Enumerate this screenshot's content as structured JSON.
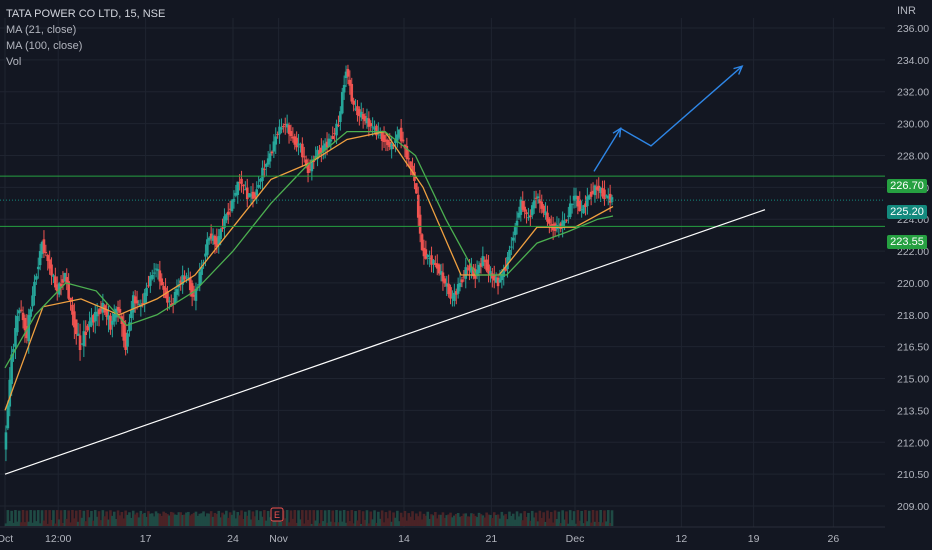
{
  "legend": {
    "symbol": "TATA POWER CO LTD, 15, NSE",
    "ma21": "MA (21, close)",
    "ma100": "MA (100, close)",
    "vol": "Vol"
  },
  "currency": "INR",
  "price_tags": {
    "upper_level": "226.70",
    "last_price": "225.20",
    "lower_level": "223.55"
  },
  "earnings_marker": "E",
  "colors": {
    "background": "#131722",
    "up": "#26a69a",
    "down": "#ef5350",
    "ma21": "#f0a040",
    "ma100": "#4caf50",
    "level": "#26a041",
    "trendline": "#ffffff",
    "projection": "#2e86e6"
  },
  "chart_data": {
    "type": "line",
    "title": "TATA POWER CO LTD, 15, NSE",
    "y_tick_labels": [
      "209.00",
      "210.50",
      "212.00",
      "213.50",
      "215.00",
      "216.50",
      "218.00",
      "220.00",
      "222.00",
      "224.00",
      "226.00",
      "228.00",
      "230.00",
      "232.00",
      "234.00",
      "236.00"
    ],
    "ylim": [
      208.5,
      236.5
    ],
    "x_tick_labels": [
      "Oct",
      "12:00",
      "17",
      "24",
      "Nov",
      "14",
      "21",
      "Dec",
      "12",
      "19",
      "26"
    ],
    "x_tick_values": [
      0,
      14,
      37,
      60,
      72,
      105,
      128,
      150,
      178,
      197,
      218
    ],
    "xlim": [
      0,
      225
    ],
    "series": [
      {
        "name": "close",
        "x": [
          0,
          2,
          4,
          6,
          8,
          10,
          12,
          14,
          16,
          18,
          20,
          22,
          24,
          26,
          28,
          30,
          32,
          34,
          36,
          38,
          40,
          42,
          44,
          46,
          48,
          50,
          52,
          54,
          56,
          58,
          60,
          62,
          64,
          66,
          68,
          70,
          72,
          74,
          76,
          78,
          80,
          82,
          84,
          86,
          88,
          90,
          92,
          94,
          96,
          98,
          100,
          102,
          104,
          106,
          108,
          110,
          112,
          114,
          116,
          118,
          120,
          122,
          124,
          126,
          128,
          130,
          132,
          134,
          136,
          138,
          140,
          142,
          144,
          146,
          148,
          150,
          152,
          154,
          156,
          158,
          160
        ],
        "y": [
          211.5,
          216.0,
          218.5,
          217.0,
          220.0,
          222.5,
          221.0,
          219.5,
          220.5,
          218.0,
          216.5,
          217.5,
          218.0,
          218.5,
          217.5,
          218.5,
          216.5,
          219.0,
          218.5,
          220.0,
          221.0,
          219.5,
          218.5,
          220.0,
          220.5,
          219.0,
          221.0,
          223.0,
          222.5,
          224.0,
          225.0,
          226.5,
          225.5,
          225.5,
          227.0,
          228.0,
          229.5,
          230.0,
          229.0,
          228.5,
          227.0,
          228.0,
          228.5,
          229.0,
          230.0,
          233.5,
          231.0,
          230.5,
          230.0,
          229.5,
          229.0,
          228.5,
          229.5,
          228.0,
          226.5,
          222.0,
          221.5,
          221.0,
          220.0,
          219.0,
          220.0,
          221.0,
          220.5,
          221.5,
          220.5,
          220.0,
          221.0,
          223.0,
          225.0,
          224.0,
          225.5,
          224.5,
          223.5,
          223.5,
          224.0,
          225.5,
          224.5,
          225.5,
          226.0,
          225.5,
          225.2
        ]
      },
      {
        "name": "MA (21, close)",
        "x": [
          0,
          10,
          20,
          30,
          40,
          50,
          60,
          70,
          80,
          90,
          100,
          110,
          120,
          130,
          140,
          150,
          160
        ],
        "y": [
          213.5,
          218.5,
          219.0,
          218.0,
          219.0,
          220.5,
          223.5,
          226.5,
          227.5,
          229.0,
          229.5,
          226.0,
          220.5,
          220.5,
          223.5,
          223.5,
          224.8
        ]
      },
      {
        "name": "MA (100, close)",
        "x": [
          0,
          8,
          16,
          24,
          32,
          40,
          50,
          60,
          70,
          80,
          90,
          100,
          108,
          116,
          124,
          132,
          140,
          148,
          156,
          160
        ],
        "y": [
          215.5,
          218.0,
          220.0,
          219.5,
          217.5,
          218.0,
          219.5,
          222.0,
          225.0,
          227.5,
          229.5,
          229.5,
          228.0,
          224.0,
          220.5,
          220.5,
          222.5,
          223.2,
          224.0,
          224.2
        ]
      }
    ],
    "annotations": [
      {
        "type": "horizontal",
        "label": "226.70",
        "y": 226.7
      },
      {
        "type": "horizontal",
        "label": "223.55",
        "y": 223.55
      },
      {
        "type": "horizontal-dotted",
        "label": "225.20",
        "y": 225.2
      },
      {
        "type": "trendline",
        "x": [
          0,
          200
        ],
        "y": [
          210.5,
          224.6
        ]
      },
      {
        "type": "projection",
        "x": [
          155,
          162,
          170,
          194
        ],
        "y": [
          227.0,
          229.7,
          228.6,
          233.6
        ]
      }
    ]
  }
}
